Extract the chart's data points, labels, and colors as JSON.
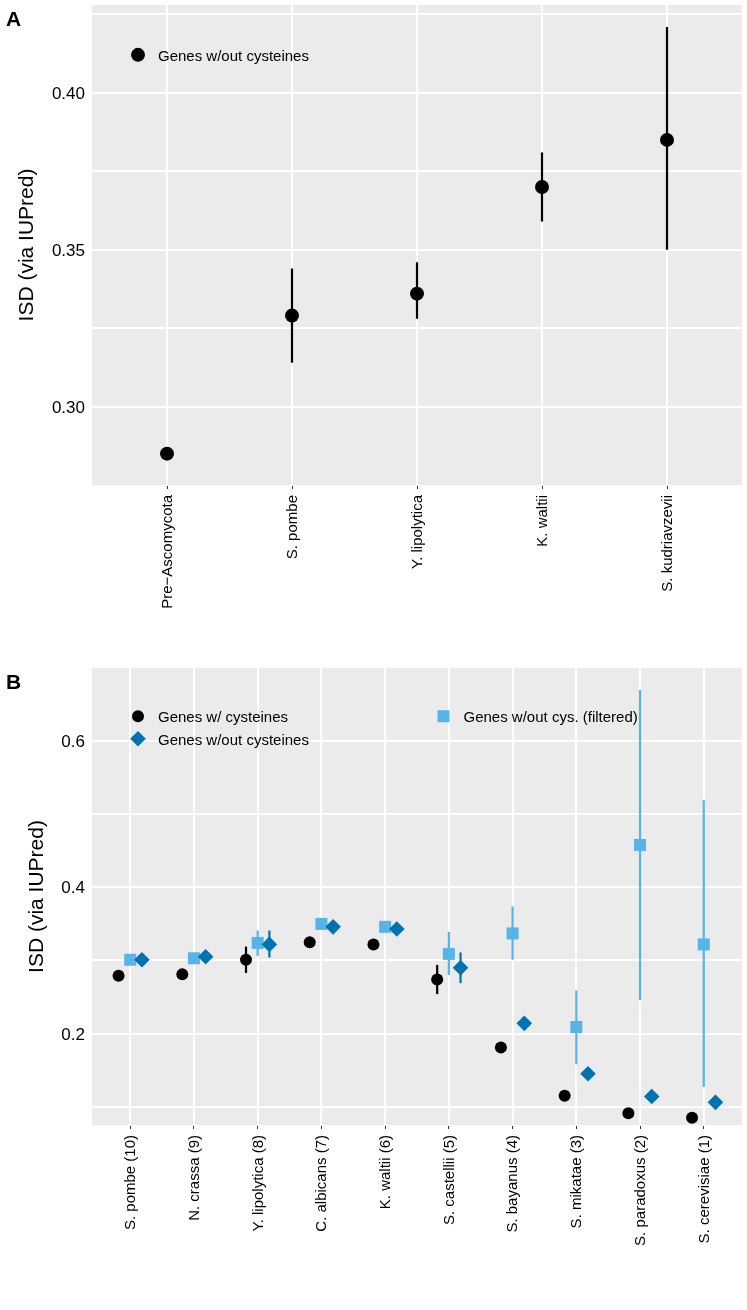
{
  "chart_data": [
    {
      "type": "scatter",
      "title": "A",
      "ylabel": "ISD (via IUPred)",
      "categories": [
        "Pre−Ascomycota",
        "S. pombe",
        "Y. lipolytica",
        "K. waltii",
        "S. kudriavzevii"
      ],
      "series": [
        {
          "name": "Genes w/out cysteines",
          "color": "#000000",
          "marker": "circle",
          "values": [
            0.285,
            0.329,
            0.336,
            0.37,
            0.385
          ],
          "errors": [
            null,
            [
              0.314,
              0.344
            ],
            [
              0.328,
              0.346
            ],
            [
              0.359,
              0.381
            ],
            [
              0.35,
              0.421
            ]
          ]
        }
      ],
      "ylim": [
        0.275,
        0.428
      ],
      "yticks": [
        {
          "value": 0.3,
          "label": "0.30"
        },
        {
          "value": 0.325,
          "label": null
        },
        {
          "value": 0.35,
          "label": "0.35"
        },
        {
          "value": 0.375,
          "label": null
        },
        {
          "value": 0.4,
          "label": "0.40"
        },
        {
          "value": 0.425,
          "label": null
        }
      ],
      "grid": true,
      "legend": "top left"
    },
    {
      "type": "scatter",
      "title": "B",
      "ylabel": "ISD (via IUPred)",
      "categories": [
        "S. pombe (10)",
        "N. crassa (9)",
        "Y. lipolytica (8)",
        "C. albicans (7)",
        "K. waltii (6)",
        "S. castellii (5)",
        "S. bayanus (4)",
        "S. mikatae (3)",
        "S. paradoxus (2)",
        "S. cerevisiae (1)"
      ],
      "series": [
        {
          "name": "Genes w/ cysteines",
          "color": "#000000",
          "marker": "circle",
          "values": [
            0.279,
            0.281,
            0.301,
            0.325,
            0.322,
            0.274,
            0.181,
            0.115,
            0.091,
            0.085
          ],
          "errors": [
            null,
            null,
            [
              0.283,
              0.319
            ],
            null,
            null,
            [
              0.254,
              0.294
            ],
            null,
            null,
            null,
            null
          ]
        },
        {
          "name": "Genes w/out cys. (filtered)",
          "color": "#56b4e9",
          "marker": "square",
          "values": [
            0.301,
            0.303,
            0.324,
            0.35,
            0.346,
            0.309,
            0.337,
            0.209,
            0.458,
            0.322
          ],
          "errors": [
            null,
            null,
            [
              0.306,
              0.341
            ],
            null,
            null,
            [
              0.28,
              0.339
            ],
            [
              0.301,
              0.374
            ],
            [
              0.158,
              0.259
            ],
            [
              0.246,
              0.67
            ],
            [
              0.127,
              0.519
            ]
          ]
        },
        {
          "name": "Genes w/out cysteines",
          "color": "#0072b2",
          "marker": "diamond",
          "values": [
            0.301,
            0.305,
            0.322,
            0.346,
            0.343,
            0.29,
            0.214,
            0.145,
            0.114,
            0.106
          ],
          "errors": [
            null,
            null,
            [
              0.304,
              0.341
            ],
            null,
            null,
            [
              0.269,
              0.311
            ],
            null,
            null,
            null,
            null
          ]
        }
      ],
      "ylim": [
        0.075,
        0.7
      ],
      "yticks": [
        {
          "value": 0.1,
          "label": null
        },
        {
          "value": 0.2,
          "label": "0.2"
        },
        {
          "value": 0.3,
          "label": null
        },
        {
          "value": 0.4,
          "label": "0.4"
        },
        {
          "value": 0.5,
          "label": null
        },
        {
          "value": 0.6,
          "label": "0.6"
        },
        {
          "value": 0.7,
          "label": null
        }
      ],
      "grid": true,
      "legend": "top left"
    }
  ]
}
